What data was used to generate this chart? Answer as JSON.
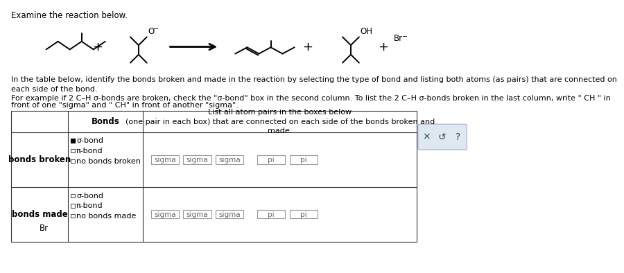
{
  "title": "Examine the reaction below.",
  "bg_color": "#ffffff",
  "paragraph1": "In the table below, identify the bonds broken and made in the reaction by selecting the type of bond and listing both atoms (as pairs) that are connected on\neach side of the bond.",
  "paragraph2_line1": "For example if 2 C–H σ-bonds are broken, check the \"σ-bond\" box in the second column. To list the 2 C–H σ-bonds broken in the last column, write \" CH \" in",
  "paragraph2_line2": "front of one \"sigma\" and \" CH\" in front of another \"sigma\".",
  "table_header_bonds": "Bonds",
  "table_header_list": "List all atom pairs in the boxes below\n(one pair in each box) that are connected on each side of the bonds broken and\nmade:",
  "row1_label": "bonds broken",
  "row2_label": "bonds made",
  "sigma_labels": [
    "sigma",
    "sigma",
    "sigma"
  ],
  "pi_labels": [
    "pi",
    "pi"
  ],
  "side_x": "×",
  "side_s": "↺",
  "side_q": "?"
}
